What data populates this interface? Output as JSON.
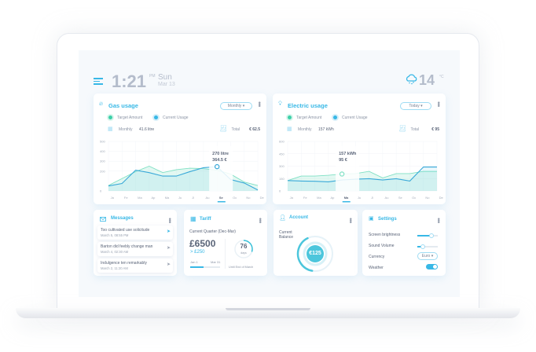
{
  "header": {
    "time": "1:21",
    "ampm": "PM",
    "day": "Sun",
    "date": "Mar 13",
    "temperature": "14",
    "unit": "°C",
    "weather_icon": "cloud-snow-icon"
  },
  "colors": {
    "accent": "#38b8e6",
    "target": "#7fe0c4",
    "current": "#38a8d8"
  },
  "gas": {
    "title": "Gas usage",
    "dropdown": "Monthly",
    "legend": [
      "Target Amount",
      "Current Usage"
    ],
    "period_label": "Monthly",
    "period_value": "41.6 litre",
    "total_label": "Total",
    "total_value": "€ 62.5",
    "tooltip": [
      "270 litre",
      "364.5 €"
    ],
    "selected": "Se"
  },
  "electric": {
    "title": "Electric usage",
    "dropdown": "Today",
    "legend": [
      "Target Amount",
      "Current Usage"
    ],
    "period_label": "Monthly",
    "period_value": "157 kWh",
    "total_label": "Total",
    "total_value": "€ 95",
    "tooltip": [
      "157 kWh",
      "95 €"
    ],
    "selected": "Ma"
  },
  "chart_data": [
    {
      "type": "area",
      "categories": [
        "Ja",
        "Fe",
        "Ma",
        "Ap",
        "Ma",
        "Ju",
        "Jl",
        "Au",
        "Se",
        "Oc",
        "No",
        "De"
      ],
      "ylim": [
        0,
        500
      ],
      "yticks": [
        "0",
        "200",
        "300",
        "400",
        "500"
      ],
      "series": [
        {
          "name": "Target Amount",
          "values": [
            55,
            125,
            195,
            250,
            185,
            215,
            230,
            225,
            210,
            170,
            90,
            55
          ]
        },
        {
          "name": "Current Usage",
          "values": [
            50,
            75,
            210,
            185,
            150,
            150,
            195,
            235,
            245,
            115,
            80,
            10
          ]
        }
      ]
    },
    {
      "type": "area",
      "categories": [
        "Ja",
        "Fe",
        "Ma",
        "Ap",
        "Ma",
        "Ju",
        "Jl",
        "Au",
        "Se",
        "Oc",
        "No",
        "De"
      ],
      "ylim": [
        0,
        600
      ],
      "yticks": [
        "0",
        "150",
        "300",
        "450",
        "600"
      ],
      "series": [
        {
          "name": "Target Amount",
          "values": [
            126,
            180,
            180,
            190,
            205,
            210,
            237,
            158,
            210,
            210,
            237,
            237
          ]
        },
        {
          "name": "Current Usage",
          "values": [
            126,
            120,
            117,
            110,
            133,
            142,
            148,
            133,
            148,
            120,
            290,
            290
          ]
        }
      ]
    }
  ],
  "messages": {
    "title": "Messages",
    "items": [
      {
        "text": "Too cultivated use solicitude",
        "date": "March 5, 08:55 PM"
      },
      {
        "text": "Barton did feebly change man",
        "date": "March 4, 02:30 AM"
      },
      {
        "text": "Indulgence ten remarkably",
        "date": "March 2, 11:20 AM"
      }
    ]
  },
  "tariff": {
    "title": "Tariff",
    "quarter": "Current Quarter (Dec-Mar)",
    "amount": "£6500",
    "delta": "> £250",
    "start": "Jan 1",
    "end": "Mar 31",
    "progress": 0.45,
    "days": "76",
    "days_label": "days",
    "until": "Until End of March",
    "days_fraction": 0.3
  },
  "account": {
    "title": "Account",
    "label": "Current Balance",
    "balance": "€125",
    "gauge_fraction": 0.4
  },
  "settings": {
    "title": "Settings",
    "brightness_label": "Screen brightness",
    "brightness": 0.7,
    "volume_label": "Sound Volume",
    "volume": 0.25,
    "currency_label": "Currency",
    "currency": "Euro",
    "weather_label": "Weather",
    "weather_on": true
  }
}
